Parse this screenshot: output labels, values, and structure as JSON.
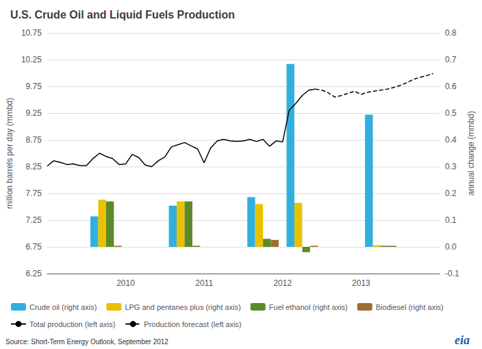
{
  "chart_data": {
    "type": "bar",
    "title": "U.S. Crude Oil and Liquid Fuels Production",
    "ylabel": "million barrels per day (mmbd)",
    "y2label": "annual change (mmbd)",
    "annotations": [
      "Source: Short-Term Energy Outlook, September 2012",
      "eia"
    ],
    "xlim": [
      2009.0,
      2014.0
    ],
    "xticks": [
      2010,
      2011,
      2012,
      2013
    ],
    "ylim": [
      6.25,
      10.75
    ],
    "yticks": [
      6.25,
      6.75,
      7.25,
      7.75,
      8.25,
      8.75,
      9.25,
      9.75,
      10.25,
      10.75
    ],
    "y2lim": [
      -0.1,
      0.8
    ],
    "y2ticks": [
      -0.1,
      {
        "value": 0,
        "label": "0.0"
      },
      0.1,
      0.2,
      0.3,
      0.4,
      0.5,
      0.6,
      0.7,
      0.8
    ],
    "grid": true,
    "legend": "bottom",
    "series": [
      {
        "name": "Crude oil (right axis)",
        "type": "bar",
        "axis": "y2",
        "color": "#31B0E0",
        "x": [
          2009.75,
          2010.75,
          2011.75,
          2012.25,
          2013.25
        ],
        "values": [
          0.114,
          0.154,
          0.186,
          0.684,
          0.494
        ]
      },
      {
        "name": "LPG and pentanes plus (right axis)",
        "type": "bar",
        "axis": "y2",
        "color": "#E8C200",
        "x": [
          2009.75,
          2010.75,
          2011.75,
          2012.25,
          2013.25
        ],
        "values": [
          0.176,
          0.17,
          0.16,
          0.164,
          0.006
        ]
      },
      {
        "name": "Fuel ethanol (right axis)",
        "type": "bar",
        "axis": "y2",
        "color": "#5C8A2A",
        "x": [
          2009.75,
          2010.75,
          2011.75,
          2012.25,
          2013.25
        ],
        "values": [
          0.17,
          0.17,
          0.03,
          -0.02,
          0.004
        ]
      },
      {
        "name": "Biodiesel (right axis)",
        "type": "bar",
        "axis": "y2",
        "color": "#9B7030",
        "x": [
          2009.75,
          2010.75,
          2011.75,
          2012.25,
          2013.25
        ],
        "values": [
          0.004,
          0.004,
          0.026,
          0.004,
          0.004
        ]
      },
      {
        "name": "Total production (left axis)",
        "type": "line",
        "color": "#000000",
        "line_style": "solid",
        "x": [
          2009.0,
          2009.083,
          2009.167,
          2009.25,
          2009.333,
          2009.417,
          2009.5,
          2009.583,
          2009.667,
          2009.75,
          2009.833,
          2009.917,
          2010.0,
          2010.083,
          2010.167,
          2010.25,
          2010.333,
          2010.417,
          2010.5,
          2010.583,
          2010.667,
          2010.75,
          2010.833,
          2010.917,
          2011.0,
          2011.083,
          2011.167,
          2011.25,
          2011.333,
          2011.417,
          2011.5,
          2011.583,
          2011.667,
          2011.75,
          2011.833,
          2011.917,
          2012.0,
          2012.083,
          2012.167,
          2012.25,
          2012.333,
          2012.417
        ],
        "values": [
          8.26,
          8.36,
          8.33,
          8.29,
          8.3,
          8.27,
          8.27,
          8.4,
          8.5,
          8.44,
          8.4,
          8.29,
          8.3,
          8.48,
          8.42,
          8.28,
          8.25,
          8.36,
          8.43,
          8.62,
          8.66,
          8.7,
          8.64,
          8.58,
          8.32,
          8.6,
          8.73,
          8.76,
          8.73,
          8.72,
          8.73,
          8.76,
          8.72,
          8.76,
          8.63,
          8.73,
          8.71,
          9.3,
          9.43,
          9.58,
          9.68,
          9.7
        ]
      },
      {
        "name": "Production forecast (left axis)",
        "type": "line",
        "color": "#000000",
        "line_style": "dashed",
        "x": [
          2012.417,
          2012.5,
          2012.583,
          2012.667,
          2012.75,
          2012.833,
          2012.917,
          2013.0,
          2013.083,
          2013.167,
          2013.25,
          2013.333,
          2013.417,
          2013.5,
          2013.583,
          2013.667,
          2013.75,
          2013.833,
          2013.917
        ],
        "values": [
          9.7,
          9.68,
          9.63,
          9.55,
          9.58,
          9.62,
          9.66,
          9.6,
          9.64,
          9.66,
          9.68,
          9.7,
          9.73,
          9.77,
          9.82,
          9.88,
          9.92,
          9.95,
          9.99
        ]
      }
    ]
  }
}
